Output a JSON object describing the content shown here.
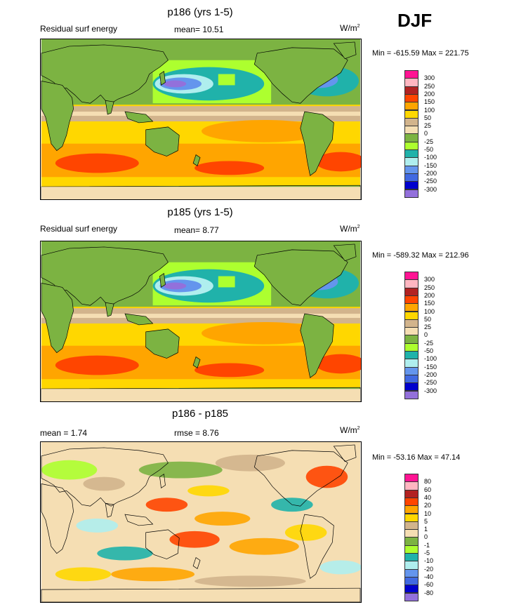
{
  "page": {
    "season": "DJF"
  },
  "panels": [
    {
      "title": "p186 (yrs 1-5)",
      "left_label": "Residual surf energy",
      "mean_label": "mean=  10.51",
      "units": "W/m",
      "units_sup": "2",
      "minmax": "Min = -615.59 Max = 221.75",
      "levels": [
        "300",
        "250",
        "200",
        "150",
        "100",
        "50",
        "25",
        "0",
        "-25",
        "-50",
        "-100",
        "-150",
        "-200",
        "-250",
        "-300"
      ]
    },
    {
      "title": "p185 (yrs 1-5)",
      "left_label": "Residual surf energy",
      "mean_label": "mean=   8.77",
      "units": "W/m",
      "units_sup": "2",
      "minmax": "Min = -589.32 Max = 212.96",
      "levels": [
        "300",
        "250",
        "200",
        "150",
        "100",
        "50",
        "25",
        "0",
        "-25",
        "-50",
        "-100",
        "-150",
        "-200",
        "-250",
        "-300"
      ]
    },
    {
      "title": "p186 - p185",
      "left_label": "mean =   1.74",
      "mean_label": "rmse =   8.76",
      "units": "W/m",
      "units_sup": "2",
      "minmax": "Min = -53.16 Max =  47.14",
      "levels": [
        "80",
        "60",
        "40",
        "20",
        "10",
        "5",
        "1",
        "0",
        "-1",
        "-5",
        "-10",
        "-20",
        "-40",
        "-60",
        "-80"
      ]
    }
  ],
  "colors": [
    "#ff1493",
    "#ffb6c1",
    "#b22222",
    "#ff4500",
    "#ffa500",
    "#ffd700",
    "#d2b48c",
    "#f5deb3",
    "#7cb342",
    "#adff2f",
    "#20b2aa",
    "#afeeee",
    "#6495ed",
    "#4169e1",
    "#0000cd",
    "#9370db"
  ],
  "chart_data": [
    {
      "type": "heatmap",
      "title": "p186 (yrs 1-5)",
      "subtitle": "Residual surf energy",
      "mean": 10.51,
      "min": -615.59,
      "max": 221.75,
      "units": "W/m2",
      "season": "DJF",
      "contour_levels": [
        300,
        250,
        200,
        150,
        100,
        50,
        25,
        0,
        -25,
        -50,
        -100,
        -150,
        -200,
        -250,
        -300
      ]
    },
    {
      "type": "heatmap",
      "title": "p185 (yrs 1-5)",
      "subtitle": "Residual surf energy",
      "mean": 8.77,
      "min": -589.32,
      "max": 212.96,
      "units": "W/m2",
      "season": "DJF",
      "contour_levels": [
        300,
        250,
        200,
        150,
        100,
        50,
        25,
        0,
        -25,
        -50,
        -100,
        -150,
        -200,
        -250,
        -300
      ]
    },
    {
      "type": "heatmap",
      "title": "p186 - p185",
      "mean": 1.74,
      "rmse": 8.76,
      "min": -53.16,
      "max": 47.14,
      "units": "W/m2",
      "contour_levels": [
        80,
        60,
        40,
        20,
        10,
        5,
        1,
        0,
        -1,
        -5,
        -10,
        -20,
        -40,
        -60,
        -80
      ]
    }
  ]
}
